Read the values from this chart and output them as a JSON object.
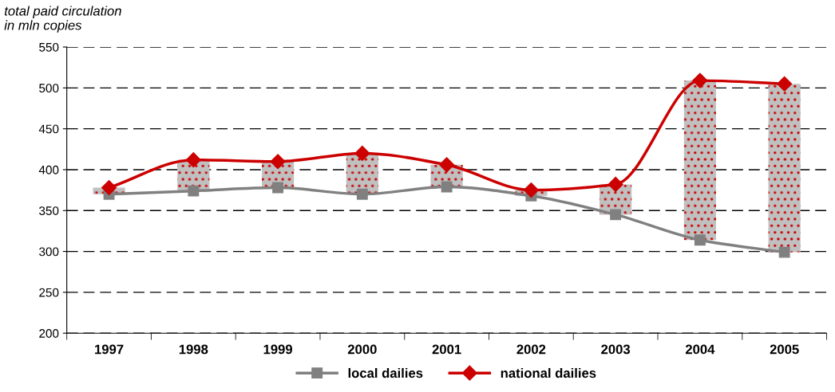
{
  "chart_data": {
    "type": "bar",
    "ylabel": "total paid circulation\nin mln copies",
    "categories": [
      "1997",
      "1998",
      "1999",
      "2000",
      "2001",
      "2002",
      "2003",
      "2004",
      "2005"
    ],
    "series": [
      {
        "color": "#c0c0c0",
        "base": [
          370,
          374,
          378,
          370,
          379,
          368,
          345,
          314,
          299
        ],
        "values": [
          8,
          38,
          32,
          50,
          27,
          7,
          37,
          195,
          206
        ]
      },
      {
        "type": "line",
        "name": "local dailies",
        "color": "#808080",
        "marker": "square",
        "values": [
          370,
          374,
          378,
          370,
          379,
          368,
          345,
          314,
          299
        ]
      },
      {
        "type": "line",
        "name": "national dailies",
        "color": "#cc0000",
        "marker": "diamond",
        "values": [
          378,
          412,
          410,
          420,
          406,
          375,
          382,
          509,
          505
        ]
      }
    ],
    "ylim": [
      200,
      550
    ],
    "yticks": [
      200,
      250,
      300,
      350,
      400,
      450,
      500,
      550
    ],
    "grid": "y",
    "legend": "bottom",
    "line_style": "solid"
  }
}
